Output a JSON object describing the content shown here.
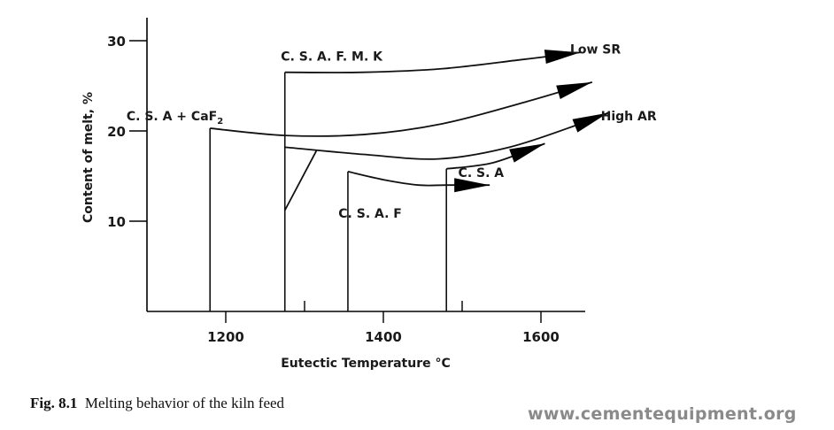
{
  "chart_data": {
    "type": "line",
    "title": "",
    "xlabel": "Eutectic Temperature °C",
    "ylabel": "Content of melt, %",
    "xlim": [
      1100,
      1650
    ],
    "ylim": [
      0,
      33
    ],
    "x_ticks": [
      1200,
      1400,
      1600
    ],
    "x_tick_labels": [
      "1200",
      "1400",
      "1600"
    ],
    "y_ticks": [
      10,
      20,
      30
    ],
    "y_tick_labels": [
      "10",
      "20",
      "30"
    ],
    "grid": false,
    "boundaries": [
      {
        "x": 1180,
        "y": [
          0,
          20.3
        ]
      },
      {
        "x": 1275,
        "y": [
          0,
          26.5
        ]
      },
      {
        "x": 1355,
        "y": [
          0,
          15.5
        ]
      },
      {
        "x": 1480,
        "y": [
          0,
          15.8
        ]
      }
    ],
    "series": [
      {
        "name": "C. S. A. F. M. K",
        "x": [
          1275,
          1375,
          1475,
          1575,
          1650
        ],
        "y": [
          26.5,
          26.5,
          26.9,
          27.9,
          28.7
        ]
      },
      {
        "name": "C. S. A + CaF2",
        "x": [
          1180,
          1275,
          1375,
          1475,
          1580,
          1665
        ],
        "y": [
          20.3,
          19.5,
          19.6,
          20.8,
          23.2,
          25.4
        ]
      },
      {
        "name": "High AR",
        "x": [
          1275,
          1375,
          1470,
          1560,
          1650,
          1685
        ],
        "y": [
          18.2,
          17.4,
          16.9,
          18.2,
          20.8,
          22.0
        ]
      },
      {
        "name": "C. S. A. F",
        "x": [
          1355,
          1400,
          1445,
          1480,
          1535
        ],
        "y": [
          15.5,
          14.6,
          14.0,
          14.0,
          14.0
        ]
      },
      {
        "name": "C. S. A",
        "x": [
          1480,
          1540,
          1605
        ],
        "y": [
          15.8,
          16.5,
          18.6
        ]
      },
      {
        "name": "",
        "x": [
          1275,
          1315
        ],
        "y": [
          11.2,
          17.8
        ]
      }
    ],
    "labels": [
      {
        "text": "C. S. A. F. M. K",
        "x": 1270,
        "y": 27.8
      },
      {
        "text": "Low SR",
        "x": 1637,
        "y": 28.6
      },
      {
        "text": "C. S. A + CaF",
        "x": 1074,
        "y": 21.2
      },
      {
        "text": "High AR",
        "x": 1676,
        "y": 21.2
      },
      {
        "text": "C. S. A",
        "x": 1495,
        "y": 14.9
      },
      {
        "text": "C. S. A. F",
        "x": 1343,
        "y": 10.4
      }
    ],
    "subscript_2": "2"
  },
  "caption": {
    "figure_number": "Fig. 8.1",
    "text": "Melting behavior of the kiln feed"
  },
  "watermark": "www.cementequipment.org"
}
